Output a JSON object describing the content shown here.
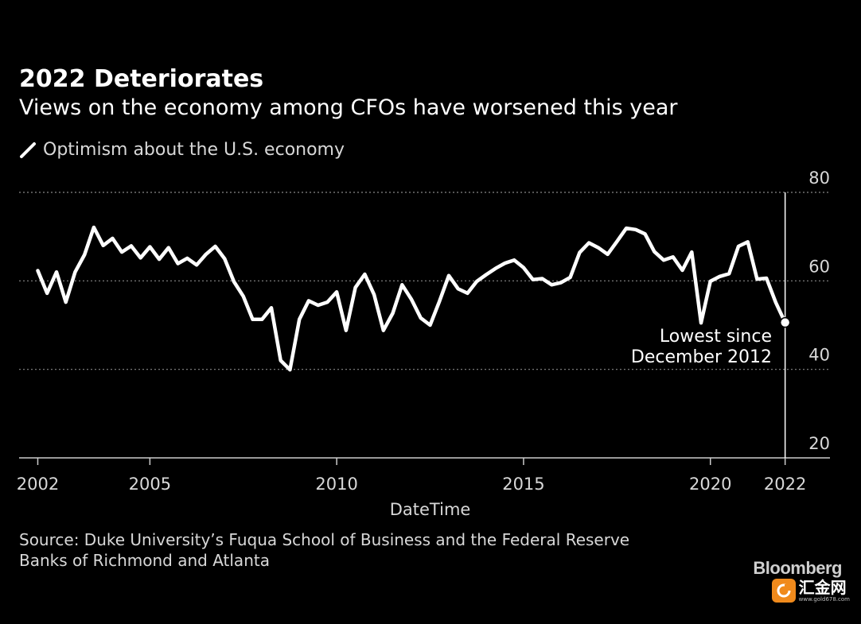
{
  "header": {
    "title": "2022 Deteriorates",
    "subtitle": "Views on the economy among CFOs have worsened this year"
  },
  "legend": {
    "label": "Optimism about the U.S. economy"
  },
  "footer": {
    "source_line1": "Source: Duke University’s Fuqua School of Business and the Federal Reserve",
    "source_line2": "Banks of Richmond and Atlanta",
    "brand": "Bloomberg",
    "watermark_name": "汇金网",
    "watermark_url": "www.gold678.com"
  },
  "colors": {
    "background": "#000000",
    "line": "#ffffff",
    "grid": "#888888",
    "text": "#d8d8d8"
  },
  "chart_data": {
    "type": "line",
    "xlabel": "DateTime",
    "ylabel": "",
    "xlim": [
      2001.5,
      2023.2
    ],
    "ylim": [
      20,
      80
    ],
    "x_ticks": [
      2002,
      2005,
      2010,
      2015,
      2020,
      2022
    ],
    "y_ticks": [
      20,
      40,
      60,
      80
    ],
    "grid": true,
    "y_axis_position": "right",
    "legend_position": "top-left",
    "reference_line": {
      "x": 2022.0
    },
    "annotation": {
      "text_line1": "Lowest since",
      "text_line2": "December 2012",
      "x": 2022.0,
      "y": 50.6
    },
    "series": [
      {
        "name": "Optimism about the U.S. economy",
        "x": [
          2002.0,
          2002.25,
          2002.5,
          2002.75,
          2003.0,
          2003.25,
          2003.5,
          2003.75,
          2004.0,
          2004.25,
          2004.5,
          2004.75,
          2005.0,
          2005.25,
          2005.5,
          2005.75,
          2006.0,
          2006.25,
          2006.5,
          2006.75,
          2007.0,
          2007.25,
          2007.5,
          2007.75,
          2008.0,
          2008.25,
          2008.5,
          2008.75,
          2009.0,
          2009.25,
          2009.5,
          2009.75,
          2010.0,
          2010.25,
          2010.5,
          2010.75,
          2011.0,
          2011.25,
          2011.5,
          2011.75,
          2012.0,
          2012.25,
          2012.5,
          2012.75,
          2013.0,
          2013.25,
          2013.5,
          2013.75,
          2014.0,
          2014.25,
          2014.5,
          2014.75,
          2015.0,
          2015.25,
          2015.5,
          2015.75,
          2016.0,
          2016.25,
          2016.5,
          2016.75,
          2017.0,
          2017.25,
          2017.5,
          2017.75,
          2018.0,
          2018.25,
          2018.5,
          2018.75,
          2019.0,
          2019.25,
          2019.5,
          2019.75,
          2020.0,
          2020.25,
          2020.5,
          2020.75,
          2021.0,
          2021.25,
          2021.5,
          2021.75,
          2022.0
        ],
        "values": [
          62.3,
          57.2,
          62.0,
          55.2,
          62.0,
          65.9,
          72.1,
          68.0,
          69.6,
          66.5,
          67.9,
          65.2,
          67.7,
          64.9,
          67.5,
          63.9,
          65.1,
          63.6,
          66.0,
          67.8,
          65.0,
          59.8,
          56.5,
          51.3,
          51.3,
          53.9,
          42.0,
          39.9,
          51.3,
          55.5,
          54.5,
          55.2,
          57.5,
          48.8,
          58.5,
          61.5,
          56.9,
          48.8,
          52.7,
          59.1,
          55.8,
          51.6,
          50.0,
          55.4,
          61.2,
          58.2,
          57.2,
          59.9,
          61.4,
          62.8,
          64.0,
          64.7,
          63.0,
          60.3,
          60.5,
          59.1,
          59.6,
          60.8,
          66.4,
          68.6,
          67.5,
          66.0,
          68.9,
          71.9,
          71.6,
          70.6,
          66.6,
          64.7,
          65.4,
          62.4,
          66.5,
          50.5,
          59.9,
          61.0,
          61.6,
          67.8,
          68.8,
          60.4,
          60.6,
          55.1,
          50.6
        ]
      }
    ]
  }
}
